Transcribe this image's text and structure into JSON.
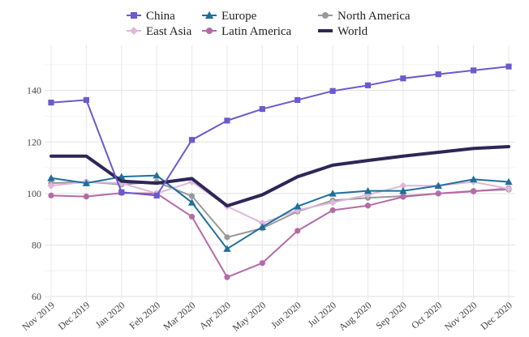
{
  "chart_data": {
    "type": "line",
    "title": "",
    "xlabel": "",
    "ylabel": "",
    "ylim": [
      60,
      155
    ],
    "yticks": [
      60,
      80,
      100,
      120,
      140
    ],
    "grid": true,
    "legend_position": "top",
    "categories": [
      "Nov 2019",
      "Dec 2019",
      "Jan 2020",
      "Feb 2020",
      "Mar 2020",
      "Apr 2020",
      "May 2020",
      "Jun 2020",
      "Jul 2020",
      "Aug 2020",
      "Sep 2020",
      "Oct 2020",
      "Nov 2020",
      "Dec 2020"
    ],
    "series": [
      {
        "name": "China",
        "color": "#6a5acd",
        "marker": "square",
        "values": [
          135.3,
          136.3,
          100.5,
          99.2,
          120.8,
          128.3,
          132.8,
          136.3,
          139.8,
          142.0,
          144.7,
          146.3,
          147.8,
          149.3
        ]
      },
      {
        "name": "East Asia",
        "color": "#dfb7dc",
        "marker": "diamond",
        "values": [
          103.0,
          104.5,
          104.0,
          100.0,
          104.5,
          95.0,
          88.5,
          93.5,
          96.5,
          99.5,
          103.0,
          103.0,
          104.5,
          101.8
        ]
      },
      {
        "name": "Europe",
        "color": "#1f6f9c",
        "marker": "triangle",
        "values": [
          106.0,
          104.0,
          106.5,
          107.0,
          96.5,
          78.5,
          87.0,
          95.0,
          100.0,
          101.0,
          101.0,
          103.0,
          105.5,
          104.5
        ]
      },
      {
        "name": "Latin America",
        "color": "#b56aa7",
        "marker": "circle",
        "values": [
          99.2,
          98.8,
          100.2,
          100.0,
          91.0,
          67.5,
          73.0,
          85.5,
          93.5,
          95.3,
          98.7,
          100.0,
          100.8,
          102.0
        ]
      },
      {
        "name": "North America",
        "color": "#999999",
        "marker": "circle",
        "values": [
          104.0,
          104.5,
          103.5,
          104.5,
          99.0,
          83.0,
          86.5,
          93.0,
          97.3,
          98.3,
          99.0,
          100.0,
          101.0,
          101.5
        ]
      },
      {
        "name": "World",
        "color": "#2e2657",
        "marker": "none",
        "values": [
          114.5,
          114.5,
          104.8,
          104.0,
          105.8,
          95.2,
          99.5,
          106.5,
          111.0,
          112.8,
          114.5,
          116.0,
          117.5,
          118.2
        ]
      }
    ]
  }
}
